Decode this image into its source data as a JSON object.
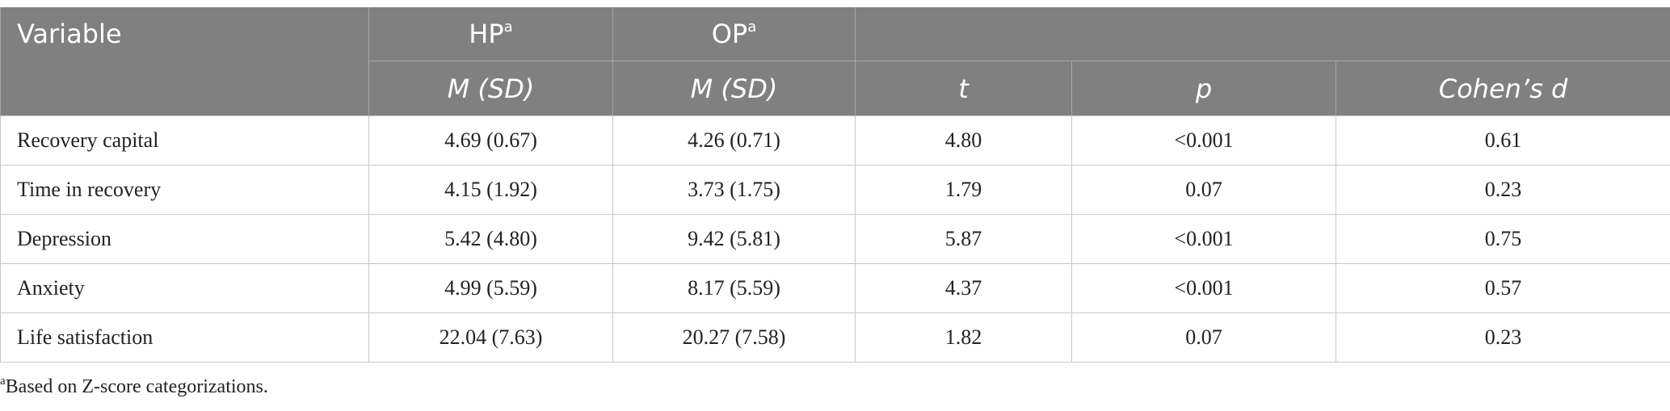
{
  "header": {
    "variable": "Variable",
    "groups": [
      {
        "label": "HP",
        "note": "a"
      },
      {
        "label": "OP",
        "note": "a"
      }
    ],
    "subheaders": [
      "M (SD)",
      "M (SD)",
      "t",
      "p",
      "Cohen’s d"
    ]
  },
  "table": {
    "rows": [
      [
        "Recovery capital",
        "4.69 (0.67)",
        "4.26 (0.71)",
        "4.80",
        "<0.001",
        "0.61"
      ],
      [
        "Time in recovery",
        "4.15 (1.92)",
        "3.73 (1.75)",
        "1.79",
        "0.07",
        "0.23"
      ],
      [
        "Depression",
        "5.42 (4.80)",
        "9.42 (5.81)",
        "5.87",
        "<0.001",
        "0.75"
      ],
      [
        "Anxiety",
        "4.99 (5.59)",
        "8.17 (5.59)",
        "4.37",
        "<0.001",
        "0.57"
      ],
      [
        "Life satisfaction",
        "22.04 (7.63)",
        "20.27 (7.58)",
        "1.82",
        "0.07",
        "0.23"
      ]
    ]
  },
  "footnote": {
    "mark": "a",
    "text": "Based on Z-score categorizations."
  }
}
